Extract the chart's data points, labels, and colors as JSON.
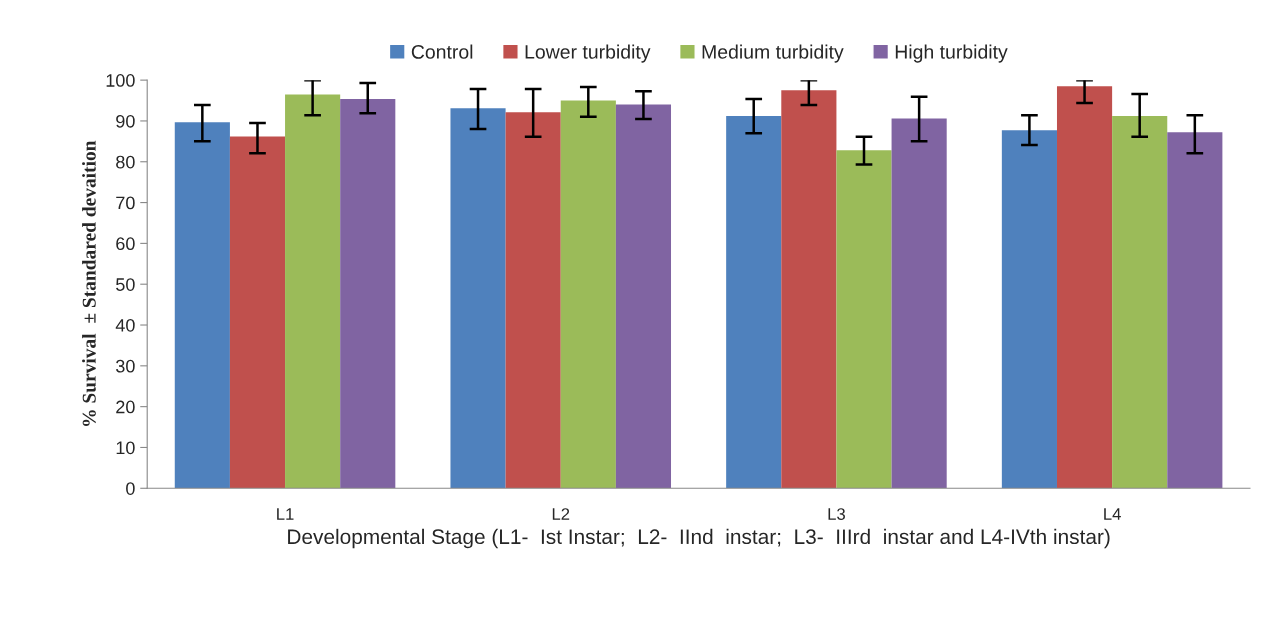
{
  "chart_data": {
    "type": "bar",
    "xlabel": "Developmental Stage (L1-  Ist Instar;  L2-  IInd  instar;  L3-  IIIrd  instar and L4-IVth instar)",
    "ylabel": "% Survival  ± Standared devaition",
    "categories": [
      "L1",
      "L2",
      "L3",
      "L4"
    ],
    "series": [
      {
        "name": "Control",
        "color": "#4f81bd",
        "values": [
          89.7,
          93.1,
          91.2,
          87.7
        ],
        "errors": [
          [
            85.0,
            93.9
          ],
          [
            88.0,
            97.8
          ],
          [
            87.0,
            95.4
          ],
          [
            84.1,
            91.4
          ]
        ]
      },
      {
        "name": "Lower turbidity",
        "color": "#c0504d",
        "values": [
          86.2,
          92.1,
          97.5,
          98.5
        ],
        "errors": [
          [
            82.1,
            89.5
          ],
          [
            86.1,
            97.8
          ],
          [
            93.9,
            100
          ],
          [
            94.4,
            100
          ]
        ]
      },
      {
        "name": "Medium turbidity",
        "color": "#9bbb59",
        "values": [
          96.5,
          95.0,
          82.8,
          91.2
        ],
        "errors": [
          [
            91.4,
            100
          ],
          [
            91.0,
            98.3
          ],
          [
            79.3,
            86.1
          ],
          [
            86.1,
            96.6
          ]
        ]
      },
      {
        "name": "High turbidity",
        "color": "#8064a2",
        "values": [
          95.4,
          94.0,
          90.6,
          87.2
        ],
        "errors": [
          [
            91.9,
            99.3
          ],
          [
            90.5,
            97.3
          ],
          [
            85.0,
            95.9
          ],
          [
            82.1,
            91.4
          ]
        ]
      }
    ],
    "ylim": [
      0,
      100
    ],
    "yticks": [
      0,
      10,
      20,
      30,
      40,
      50,
      60,
      70,
      80,
      90,
      100
    ],
    "grid": false,
    "legend": "top"
  }
}
